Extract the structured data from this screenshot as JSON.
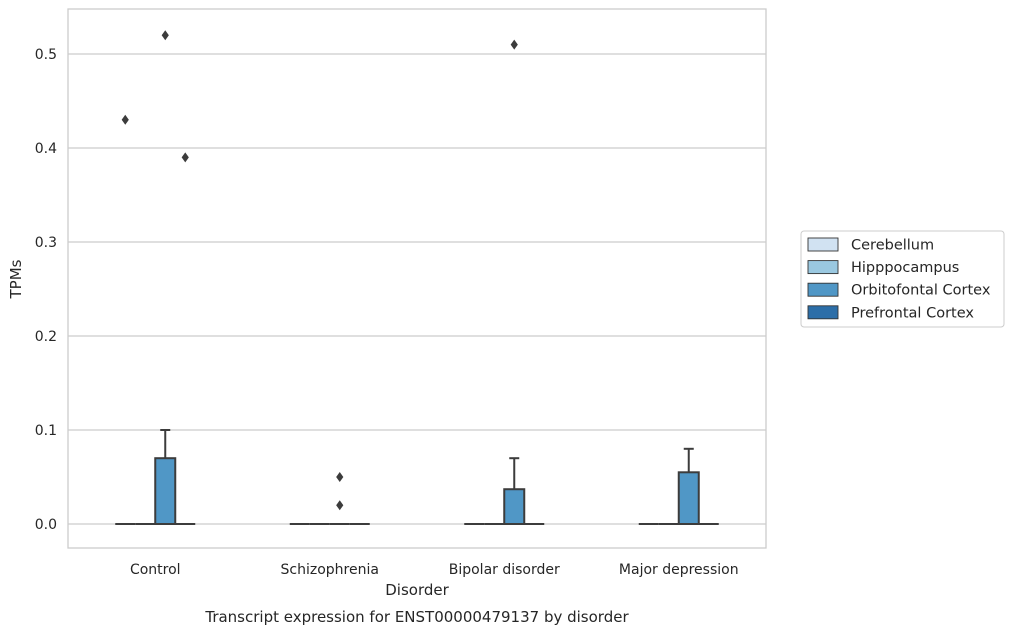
{
  "chart_data": {
    "type": "box",
    "caption": "Transcript expression for ENST00000479137 by disorder",
    "xlabel": "Disorder",
    "ylabel": "TPMs",
    "ylim": [
      -0.025,
      0.545
    ],
    "yticks": [
      "0.0",
      "0.1",
      "0.2",
      "0.3",
      "0.4",
      "0.5"
    ],
    "ytick_values": [
      0.0,
      0.1,
      0.2,
      0.3,
      0.4,
      0.5
    ],
    "grid": "horizontal",
    "legend_position": "right",
    "categories": [
      "Control",
      "Schizophrenia",
      "Bipolar disorder",
      "Major depression"
    ],
    "series": [
      {
        "name": "Cerebellum",
        "color": "#d1e2f2",
        "boxes": [
          {
            "category": "Control",
            "q1": 0,
            "median": 0,
            "q3": 0,
            "whisker_low": 0,
            "whisker_high": 0,
            "outliers": [
              0.43
            ]
          },
          {
            "category": "Schizophrenia",
            "q1": 0,
            "median": 0,
            "q3": 0,
            "whisker_low": 0,
            "whisker_high": 0,
            "outliers": []
          },
          {
            "category": "Bipolar disorder",
            "q1": 0,
            "median": 0,
            "q3": 0,
            "whisker_low": 0,
            "whisker_high": 0,
            "outliers": []
          },
          {
            "category": "Major depression",
            "q1": 0,
            "median": 0,
            "q3": 0,
            "whisker_low": 0,
            "whisker_high": 0,
            "outliers": []
          }
        ]
      },
      {
        "name": "Hipppocampus",
        "color": "#9ac8e0",
        "boxes": [
          {
            "category": "Control",
            "q1": 0,
            "median": 0,
            "q3": 0,
            "whisker_low": 0,
            "whisker_high": 0,
            "outliers": []
          },
          {
            "category": "Schizophrenia",
            "q1": 0,
            "median": 0,
            "q3": 0,
            "whisker_low": 0,
            "whisker_high": 0,
            "outliers": []
          },
          {
            "category": "Bipolar disorder",
            "q1": 0,
            "median": 0,
            "q3": 0,
            "whisker_low": 0,
            "whisker_high": 0,
            "outliers": []
          },
          {
            "category": "Major depression",
            "q1": 0,
            "median": 0,
            "q3": 0,
            "whisker_low": 0,
            "whisker_high": 0,
            "outliers": []
          }
        ]
      },
      {
        "name": "Orbitofontal Cortex",
        "color": "#5097c6",
        "boxes": [
          {
            "category": "Control",
            "q1": 0,
            "median": 0,
            "q3": 0.07,
            "whisker_low": 0,
            "whisker_high": 0.1,
            "outliers": [
              0.52
            ]
          },
          {
            "category": "Schizophrenia",
            "q1": 0,
            "median": 0,
            "q3": 0,
            "whisker_low": 0,
            "whisker_high": 0,
            "outliers": [
              0.05,
              0.02
            ]
          },
          {
            "category": "Bipolar disorder",
            "q1": 0,
            "median": 0,
            "q3": 0.037,
            "whisker_low": 0,
            "whisker_high": 0.07,
            "outliers": [
              0.51
            ]
          },
          {
            "category": "Major depression",
            "q1": 0,
            "median": 0,
            "q3": 0.055,
            "whisker_low": 0,
            "whisker_high": 0.08,
            "outliers": []
          }
        ]
      },
      {
        "name": "Prefrontal Cortex",
        "color": "#2c6ea8",
        "boxes": [
          {
            "category": "Control",
            "q1": 0,
            "median": 0,
            "q3": 0,
            "whisker_low": 0,
            "whisker_high": 0,
            "outliers": [
              0.39
            ]
          },
          {
            "category": "Schizophrenia",
            "q1": 0,
            "median": 0,
            "q3": 0,
            "whisker_low": 0,
            "whisker_high": 0,
            "outliers": []
          },
          {
            "category": "Bipolar disorder",
            "q1": 0,
            "median": 0,
            "q3": 0,
            "whisker_low": 0,
            "whisker_high": 0,
            "outliers": []
          },
          {
            "category": "Major depression",
            "q1": 0,
            "median": 0,
            "q3": 0,
            "whisker_low": 0,
            "whisker_high": 0,
            "outliers": []
          }
        ]
      }
    ]
  }
}
